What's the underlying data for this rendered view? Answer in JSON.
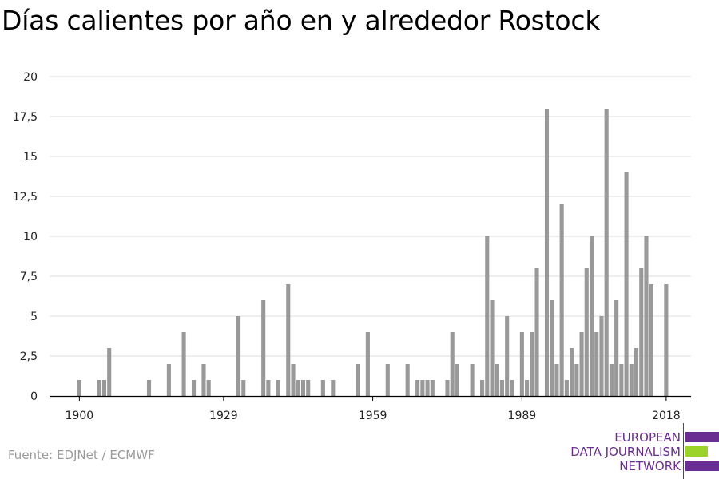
{
  "chart_data": {
    "type": "bar",
    "title": "Días calientes por año en y alrededor Rostock",
    "xlabel": "",
    "ylabel": "",
    "ylim": [
      0,
      20
    ],
    "xlim": [
      1894,
      2023
    ],
    "yticks": [
      0,
      2.5,
      5,
      7.5,
      10,
      12.5,
      15,
      17.5,
      20
    ],
    "ytick_labels": [
      "0",
      "2,5",
      "5",
      "7,5",
      "10",
      "12,5",
      "15",
      "17,5",
      "20"
    ],
    "xticks": [
      1900,
      1929,
      1959,
      1989,
      2018
    ],
    "xtick_labels": [
      "1900",
      "1929",
      "1959",
      "1989",
      "2018"
    ],
    "grid": true,
    "bar_color": "#999999",
    "x": [
      1900,
      1904,
      1905,
      1906,
      1914,
      1918,
      1921,
      1923,
      1925,
      1926,
      1932,
      1933,
      1937,
      1938,
      1940,
      1942,
      1943,
      1944,
      1945,
      1946,
      1949,
      1951,
      1956,
      1958,
      1962,
      1966,
      1968,
      1969,
      1970,
      1971,
      1974,
      1975,
      1976,
      1979,
      1981,
      1982,
      1983,
      1984,
      1985,
      1986,
      1987,
      1989,
      1990,
      1991,
      1992,
      1994,
      1995,
      1996,
      1997,
      1998,
      1999,
      2000,
      2001,
      2002,
      2003,
      2004,
      2005,
      2006,
      2007,
      2008,
      2009,
      2010,
      2011,
      2012,
      2013,
      2014,
      2015,
      2018
    ],
    "values": [
      1,
      1,
      1,
      3,
      1,
      2,
      4,
      1,
      2,
      1,
      5,
      1,
      6,
      1,
      1,
      7,
      2,
      1,
      1,
      1,
      1,
      1,
      2,
      4,
      2,
      2,
      1,
      1,
      1,
      1,
      1,
      4,
      2,
      2,
      1,
      10,
      6,
      2,
      1,
      5,
      1,
      4,
      1,
      4,
      8,
      18,
      6,
      2,
      12,
      1,
      3,
      2,
      4,
      8,
      10,
      4,
      5,
      18,
      2,
      6,
      2,
      14,
      2,
      3,
      8,
      10,
      7,
      7
    ]
  },
  "source": "Fuente: EDJNet / ECMWF",
  "logo": {
    "lines": [
      "EUROPEAN",
      "DATA JOURNALISM",
      "NETWORK"
    ],
    "colors": {
      "purple": "#6a2d91",
      "green": "#9bd32a"
    }
  }
}
